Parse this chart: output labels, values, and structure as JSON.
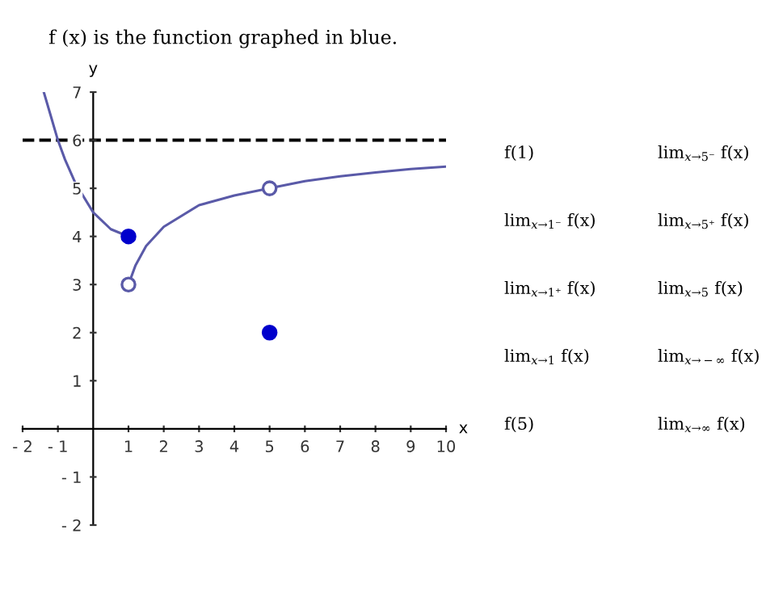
{
  "chart_data": {
    "type": "line",
    "title": "f (x) is the function graphed in blue.",
    "xlabel": "x",
    "ylabel": "y",
    "series": [
      {
        "color": "#5a5aa8",
        "x": [
          -1.4,
          -1.2,
          -1.0,
          -0.8,
          -0.5,
          0,
          0.5,
          1
        ],
        "values": [
          7.0,
          6.5,
          6.0,
          5.6,
          5.1,
          4.5,
          4.15,
          4.0
        ]
      },
      {
        "color": "#5a5aa8",
        "x": [
          1,
          1.2,
          1.5,
          2,
          3,
          4,
          5,
          6,
          7,
          8,
          9,
          10
        ],
        "values": [
          3.0,
          3.4,
          3.8,
          4.2,
          4.65,
          4.85,
          5.0,
          5.15,
          5.25,
          5.33,
          5.4,
          5.45
        ]
      },
      {
        "type": "scatter",
        "color": "#0000cc",
        "marker": "circle",
        "x": [
          1,
          5
        ],
        "values": [
          4,
          2
        ]
      },
      {
        "type": "scatter",
        "color": "#ffffff",
        "marker": "circle",
        "x": [
          1,
          5
        ],
        "values": [
          3,
          5
        ]
      }
    ],
    "xlim": [
      -2,
      10
    ],
    "ylim": [
      -2,
      7
    ],
    "xticks": [
      {
        "value": -2,
        "label": "- 2"
      },
      {
        "value": -1,
        "label": "- 1"
      },
      1,
      2,
      3,
      4,
      5,
      6,
      7,
      8,
      9,
      10
    ],
    "yticks": [
      {
        "value": -2,
        "label": "- 2"
      },
      {
        "value": -1,
        "label": "- 1"
      },
      1,
      2,
      3,
      4,
      5,
      6,
      7
    ],
    "ref_lines": [
      {
        "axis": "y",
        "value": 6,
        "color": "#000000",
        "line_style": "dashed"
      }
    ],
    "annotations": [
      "f(1)",
      "lim$_{x→5⁻}$ f(x)",
      "lim$_{x→1⁻}$ f(x)",
      "lim$_{x→5⁺}$ f(x)",
      "lim$_{x→1⁺}$ f(x)",
      "lim$_{x→5}$ f(x)",
      "lim$_{x→1}$ f(x)",
      "lim$_{x→−∞}$ f(x)",
      "f(5)",
      "lim$_{x→∞}$ f(x)"
    ],
    "grid": false,
    "legend": false
  }
}
